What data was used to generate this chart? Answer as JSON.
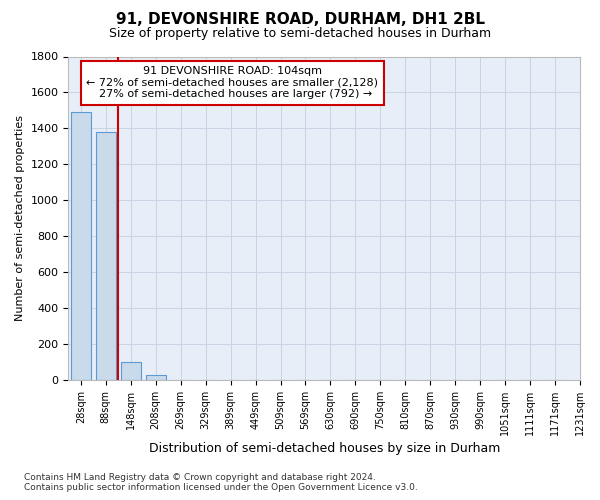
{
  "title1": "91, DEVONSHIRE ROAD, DURHAM, DH1 2BL",
  "title2": "Size of property relative to semi-detached houses in Durham",
  "xlabel": "Distribution of semi-detached houses by size in Durham",
  "ylabel": "Number of semi-detached properties",
  "footnote": "Contains HM Land Registry data © Crown copyright and database right 2024.\nContains public sector information licensed under the Open Government Licence v3.0.",
  "bins": [
    "28sqm",
    "88sqm",
    "148sqm",
    "208sqm",
    "269sqm",
    "329sqm",
    "389sqm",
    "449sqm",
    "509sqm",
    "569sqm",
    "630sqm",
    "690sqm",
    "750sqm",
    "810sqm",
    "870sqm",
    "930sqm",
    "990sqm",
    "1051sqm",
    "1111sqm",
    "1171sqm",
    "1231sqm"
  ],
  "values": [
    1490,
    1380,
    100,
    30,
    0,
    0,
    0,
    0,
    0,
    0,
    0,
    0,
    0,
    0,
    0,
    0,
    0,
    0,
    0,
    0
  ],
  "bar_color": "#c9daea",
  "bar_edge_color": "#5b9bd5",
  "grid_color": "#c8d4e3",
  "background_color": "#e8eef7",
  "ylim": [
    0,
    1800
  ],
  "yticks": [
    0,
    200,
    400,
    600,
    800,
    1000,
    1200,
    1400,
    1600,
    1800
  ],
  "property_label": "91 DEVONSHIRE ROAD: 104sqm",
  "pct_smaller": 72,
  "n_smaller": 2128,
  "pct_larger": 27,
  "n_larger": 792,
  "vline_color": "#cc0000",
  "annotation_box_color": "#cc0000",
  "title1_fontsize": 11,
  "title2_fontsize": 9
}
